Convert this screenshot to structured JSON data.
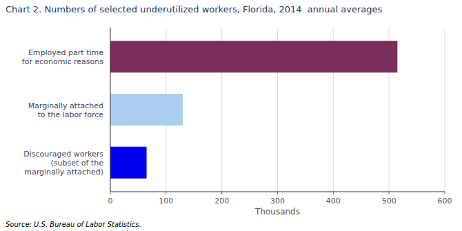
{
  "chart_data": {
    "type": "bar",
    "orientation": "horizontal",
    "title": "Chart 2. Numbers of selected underutilized workers, Florida, 2014  annual averages",
    "categories": [
      "Discouraged workers\n(subset of the\nmarginally attached)",
      "Marginally attached\nto the labor force",
      "Employed part time\nfor economic reasons"
    ],
    "values": [
      65,
      130,
      515
    ],
    "colors": [
      "#0000ee",
      "#aacfee",
      "#7b2d5e"
    ],
    "xlabel": "Thousands",
    "xlim": [
      0,
      600
    ],
    "xticks": [
      0,
      100,
      200,
      300,
      400,
      500,
      600
    ],
    "grid": true,
    "annotations": [
      "Source: U.S. Bureau of Labor Statistics."
    ]
  }
}
